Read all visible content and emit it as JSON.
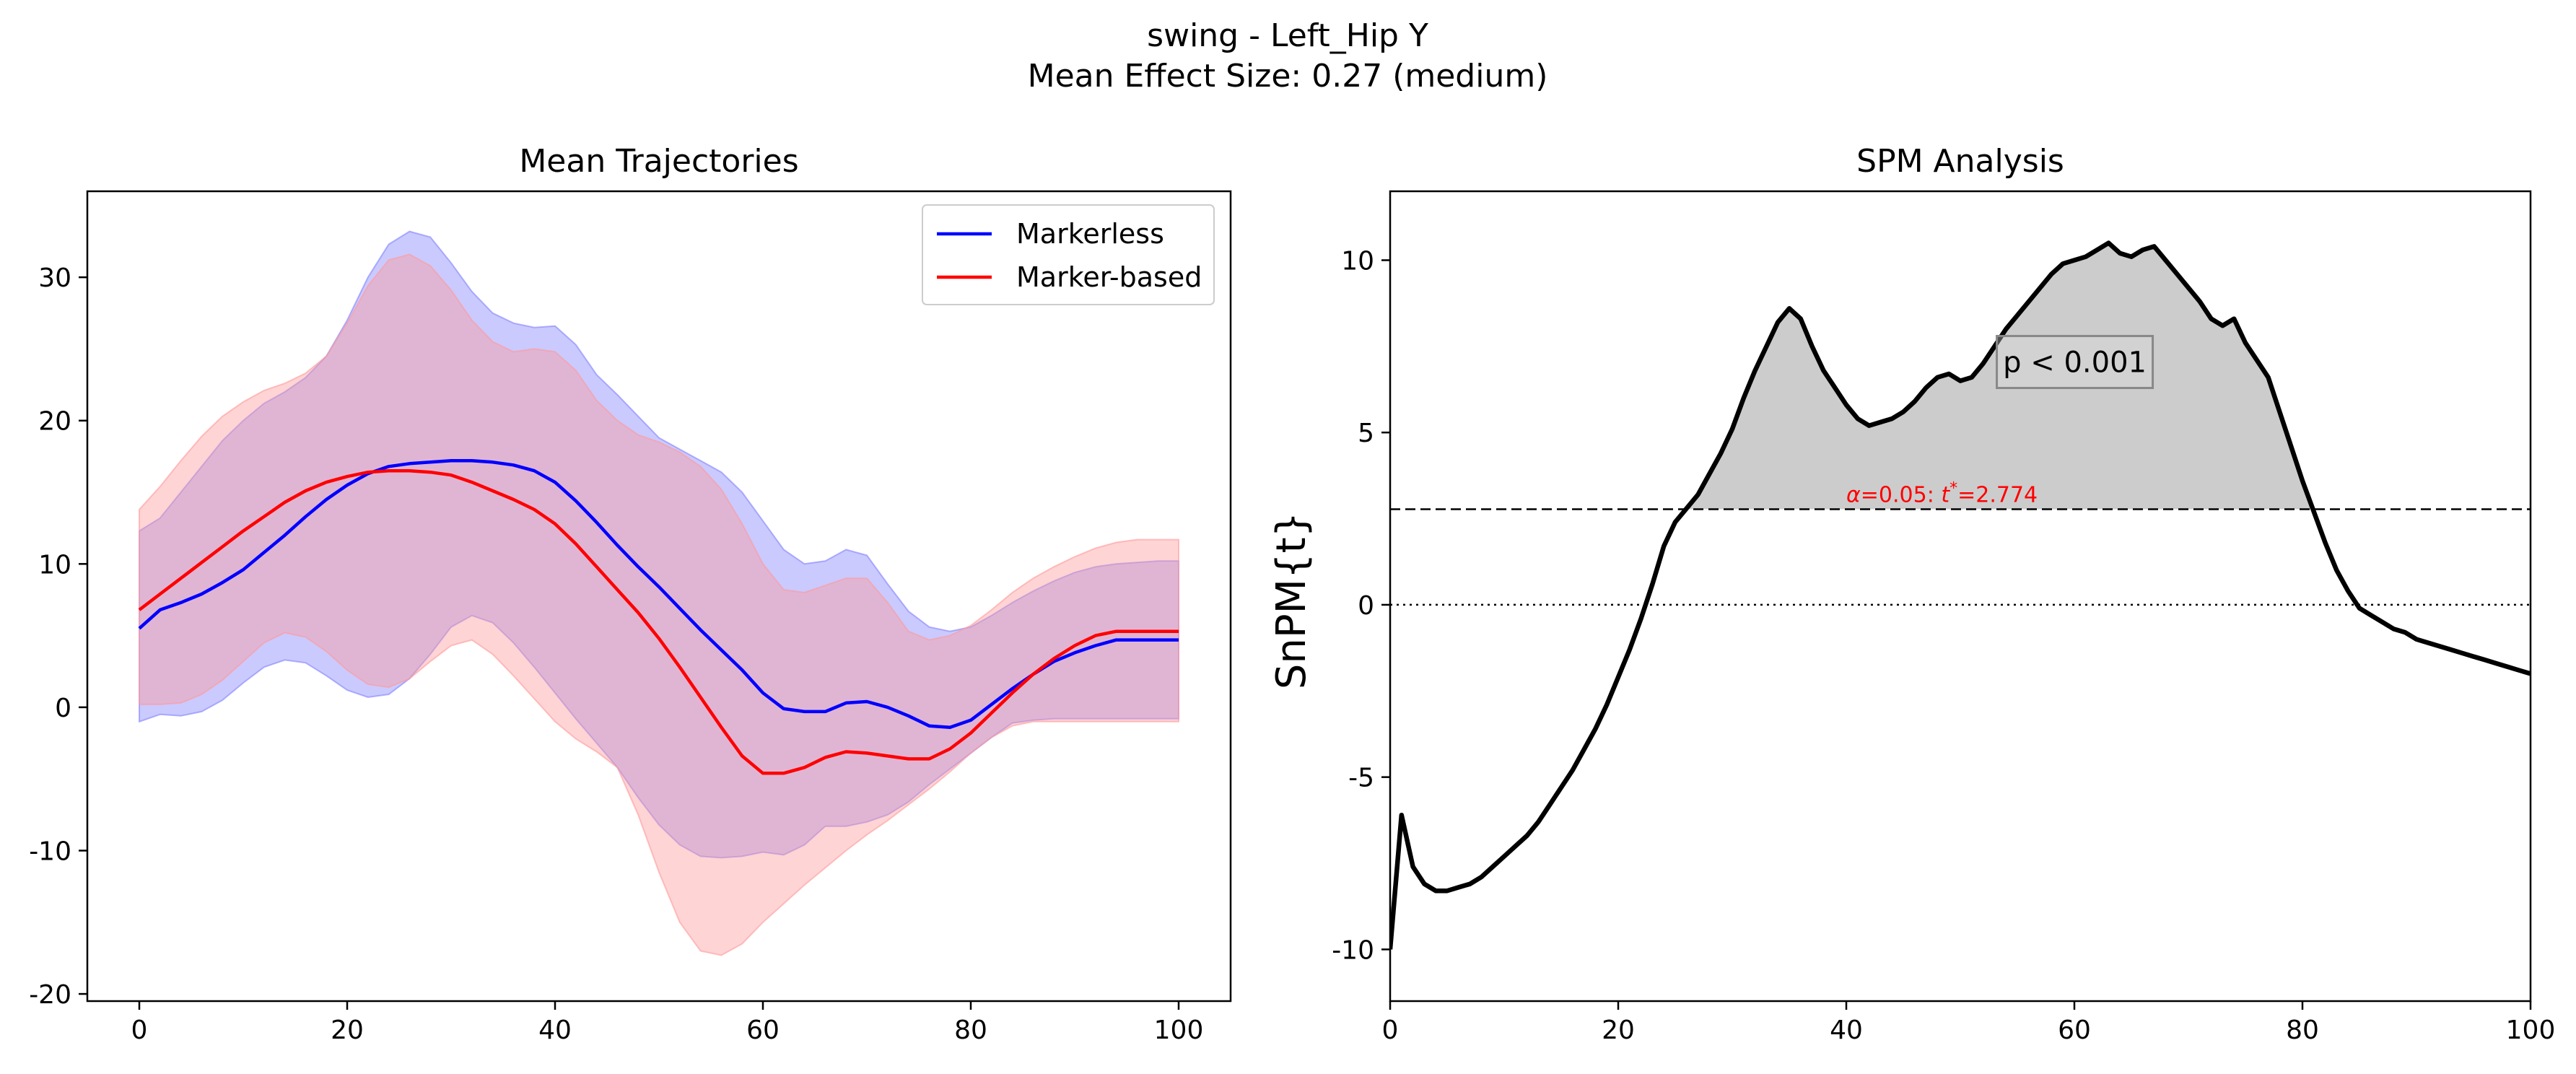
{
  "figure": {
    "suptitle_line1": "swing - Left_Hip Y",
    "suptitle_line2": "Mean Effect Size: 0.27 (medium)"
  },
  "chart_data": [
    {
      "type": "line",
      "title": "Mean Trajectories",
      "xlabel": "",
      "ylabel": "",
      "xlim": [
        -5,
        105
      ],
      "ylim": [
        -20.5,
        36
      ],
      "xticks": [
        "0",
        "20",
        "40",
        "60",
        "80",
        "100"
      ],
      "yticks": [
        "-20",
        "-10",
        "0",
        "10",
        "20",
        "30"
      ],
      "legend_position": "top-right",
      "x": [
        0,
        2,
        4,
        6,
        8,
        10,
        12,
        14,
        16,
        18,
        20,
        22,
        24,
        26,
        28,
        30,
        32,
        34,
        36,
        38,
        40,
        42,
        44,
        46,
        48,
        50,
        52,
        54,
        56,
        58,
        60,
        62,
        64,
        66,
        68,
        70,
        72,
        74,
        76,
        78,
        80,
        82,
        84,
        86,
        88,
        90,
        92,
        94,
        96,
        98,
        100
      ],
      "series": [
        {
          "name": "Markerless",
          "color": "#0000ff",
          "band_color": "#8080ff",
          "mean": [
            5.5,
            6.8,
            7.3,
            7.9,
            8.7,
            9.6,
            10.8,
            12.0,
            13.3,
            14.5,
            15.5,
            16.3,
            16.8,
            17.0,
            17.1,
            17.2,
            17.2,
            17.1,
            16.9,
            16.5,
            15.7,
            14.4,
            12.9,
            11.3,
            9.8,
            8.4,
            6.9,
            5.4,
            4.0,
            2.6,
            1.0,
            -0.1,
            -0.3,
            -0.3,
            0.3,
            0.4,
            0.0,
            -0.6,
            -1.3,
            -1.4,
            -0.9,
            0.2,
            1.3,
            2.3,
            3.2,
            3.8,
            4.3,
            4.7,
            4.7,
            4.7,
            4.7
          ],
          "upper": [
            12.3,
            13.2,
            15.0,
            16.8,
            18.6,
            20.0,
            21.2,
            22.0,
            23.0,
            24.5,
            27.0,
            30.0,
            32.3,
            33.2,
            32.8,
            31.0,
            29.0,
            27.5,
            26.8,
            26.5,
            26.6,
            25.3,
            23.2,
            21.8,
            20.3,
            18.8,
            18.0,
            17.2,
            16.4,
            15.0,
            13.0,
            11.0,
            10.0,
            10.2,
            11.0,
            10.6,
            8.6,
            6.7,
            5.6,
            5.3,
            5.6,
            6.4,
            7.3,
            8.1,
            8.8,
            9.4,
            9.8,
            10.0,
            10.1,
            10.2,
            10.2
          ],
          "lower": [
            -1.0,
            -0.5,
            -0.6,
            -0.3,
            0.5,
            1.7,
            2.8,
            3.3,
            3.1,
            2.2,
            1.2,
            0.7,
            0.9,
            2.0,
            3.7,
            5.6,
            6.4,
            5.9,
            4.5,
            2.8,
            1.0,
            -0.8,
            -2.5,
            -4.2,
            -6.3,
            -8.2,
            -9.6,
            -10.4,
            -10.5,
            -10.4,
            -10.1,
            -10.3,
            -9.6,
            -8.3,
            -8.3,
            -8.0,
            -7.5,
            -6.6,
            -5.4,
            -4.3,
            -3.2,
            -2.1,
            -1.1,
            -0.9,
            -0.8,
            -0.8,
            -0.8,
            -0.8,
            -0.8,
            -0.8,
            -0.8
          ]
        },
        {
          "name": "Marker-based",
          "color": "#ff0000",
          "band_color": "#ff9999",
          "mean": [
            6.8,
            7.9,
            9.0,
            10.1,
            11.2,
            12.3,
            13.3,
            14.3,
            15.1,
            15.7,
            16.1,
            16.4,
            16.5,
            16.5,
            16.4,
            16.2,
            15.7,
            15.1,
            14.5,
            13.8,
            12.8,
            11.4,
            9.8,
            8.2,
            6.6,
            4.8,
            2.8,
            0.7,
            -1.4,
            -3.4,
            -4.6,
            -4.6,
            -4.2,
            -3.5,
            -3.1,
            -3.2,
            -3.4,
            -3.6,
            -3.6,
            -2.9,
            -1.8,
            -0.4,
            1.0,
            2.3,
            3.4,
            4.3,
            5.0,
            5.3,
            5.3,
            5.3,
            5.3
          ],
          "upper": [
            13.8,
            15.4,
            17.2,
            18.9,
            20.3,
            21.3,
            22.1,
            22.6,
            23.3,
            24.5,
            26.8,
            29.4,
            31.2,
            31.6,
            30.8,
            29.1,
            27.0,
            25.5,
            24.8,
            25.0,
            24.8,
            23.5,
            21.4,
            20.0,
            19.0,
            18.5,
            17.8,
            16.8,
            15.2,
            12.8,
            10.0,
            8.2,
            8.0,
            8.5,
            9.0,
            9.0,
            7.3,
            5.3,
            4.7,
            5.0,
            5.7,
            6.8,
            8.0,
            9.0,
            9.8,
            10.5,
            11.1,
            11.5,
            11.7,
            11.7,
            11.7
          ],
          "lower": [
            0.2,
            0.2,
            0.3,
            0.9,
            1.9,
            3.2,
            4.5,
            5.2,
            4.9,
            3.9,
            2.6,
            1.6,
            1.4,
            2.0,
            3.2,
            4.3,
            4.7,
            3.7,
            2.2,
            0.6,
            -1.0,
            -2.2,
            -3.1,
            -4.2,
            -7.5,
            -11.5,
            -15.0,
            -17.0,
            -17.3,
            -16.5,
            -15.0,
            -13.7,
            -12.4,
            -11.2,
            -10.0,
            -8.9,
            -7.9,
            -6.8,
            -5.7,
            -4.5,
            -3.2,
            -2.1,
            -1.3,
            -1.0,
            -1.0,
            -1.0,
            -1.0,
            -1.0,
            -1.0,
            -1.0,
            -1.0
          ]
        }
      ]
    },
    {
      "type": "line",
      "title": "SPM Analysis",
      "xlabel": "",
      "ylabel": "SnPM{t}",
      "xlim": [
        0,
        100
      ],
      "ylim": [
        -11.5,
        12
      ],
      "xticks": [
        "0",
        "20",
        "40",
        "60",
        "80",
        "100"
      ],
      "yticks": [
        "-10",
        "-5",
        "0",
        "5",
        "10"
      ],
      "threshold": 2.774,
      "threshold_label": "α=0.05:  t* =2.774",
      "threshold_label_parts": {
        "alpha": "α",
        "alpha_value": "=0.05:",
        "t": "t",
        "star": "*",
        "t_value": "=2.774"
      },
      "p_label": "p < 0.001",
      "cluster_fill_color": "#cccccc",
      "line_color": "#000000",
      "x": [
        0,
        1,
        2,
        3,
        4,
        5,
        6,
        7,
        8,
        9,
        10,
        11,
        12,
        13,
        14,
        15,
        16,
        17,
        18,
        19,
        20,
        21,
        22,
        23,
        24,
        25,
        26,
        27,
        28,
        29,
        30,
        31,
        32,
        33,
        34,
        35,
        36,
        37,
        38,
        39,
        40,
        41,
        42,
        43,
        44,
        45,
        46,
        47,
        48,
        49,
        50,
        51,
        52,
        53,
        54,
        55,
        56,
        57,
        58,
        59,
        60,
        61,
        62,
        63,
        64,
        65,
        66,
        67,
        68,
        69,
        70,
        71,
        72,
        73,
        74,
        75,
        76,
        77,
        78,
        79,
        80,
        81,
        82,
        83,
        84,
        85,
        86,
        87,
        88,
        89,
        90,
        91,
        92,
        93,
        94,
        95,
        96,
        97,
        98,
        99,
        100
      ],
      "values": [
        -10.0,
        -6.1,
        -7.6,
        -8.1,
        -8.3,
        -8.3,
        -8.2,
        -8.1,
        -7.9,
        -7.6,
        -7.3,
        -7.0,
        -6.7,
        -6.3,
        -5.8,
        -5.3,
        -4.8,
        -4.2,
        -3.6,
        -2.9,
        -2.1,
        -1.3,
        -0.4,
        0.6,
        1.7,
        2.4,
        2.8,
        3.2,
        3.8,
        4.4,
        5.1,
        6.0,
        6.8,
        7.5,
        8.2,
        8.6,
        8.3,
        7.5,
        6.8,
        6.3,
        5.8,
        5.4,
        5.2,
        5.3,
        5.4,
        5.6,
        5.9,
        6.3,
        6.6,
        6.7,
        6.5,
        6.6,
        7.0,
        7.5,
        8.0,
        8.4,
        8.8,
        9.2,
        9.6,
        9.9,
        10.0,
        10.1,
        10.3,
        10.5,
        10.2,
        10.1,
        10.3,
        10.4,
        10.0,
        9.6,
        9.2,
        8.8,
        8.3,
        8.1,
        8.3,
        7.6,
        7.1,
        6.6,
        5.6,
        4.6,
        3.6,
        2.7,
        1.8,
        1.0,
        0.4,
        -0.1,
        -0.3,
        -0.5,
        -0.7,
        -0.8,
        -1.0,
        -1.1,
        -1.2,
        -1.3,
        -1.4,
        -1.5,
        -1.6,
        -1.7,
        -1.8,
        -1.9,
        -2.0
      ]
    }
  ]
}
